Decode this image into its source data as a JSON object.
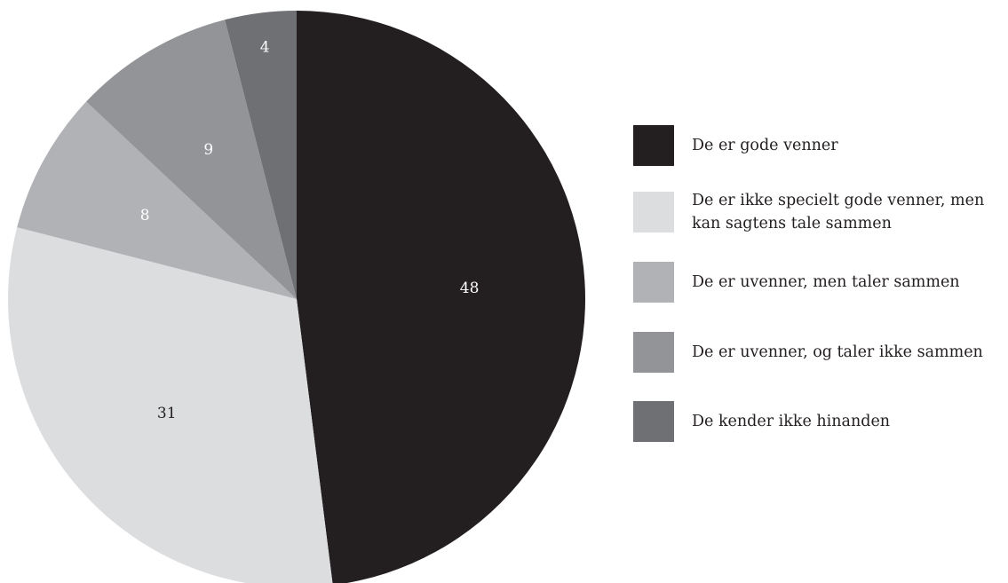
{
  "chart_data": {
    "type": "pie",
    "title": "",
    "start_angle_deg": 0,
    "direction": "clockwise",
    "legend_position": "right",
    "slices": [
      {
        "label": "De er gode venner",
        "value": 48,
        "color": "#231f20",
        "label_color": "#ffffff"
      },
      {
        "label": "De er ikke specielt gode venner, men\nkan sagtens tale sammen",
        "value": 31,
        "color": "#dcdddf",
        "label_color": "#231f20"
      },
      {
        "label": "De er uvenner, men taler sammen",
        "value": 8,
        "color": "#b1b2b5",
        "label_color": "#ffffff"
      },
      {
        "label": "De er uvenner, og taler ikke sammen",
        "value": 9,
        "color": "#939497",
        "label_color": "#ffffff"
      },
      {
        "label": "De kender ikke hinanden",
        "value": 4,
        "color": "#6f7074",
        "label_color": "#ffffff"
      }
    ]
  }
}
